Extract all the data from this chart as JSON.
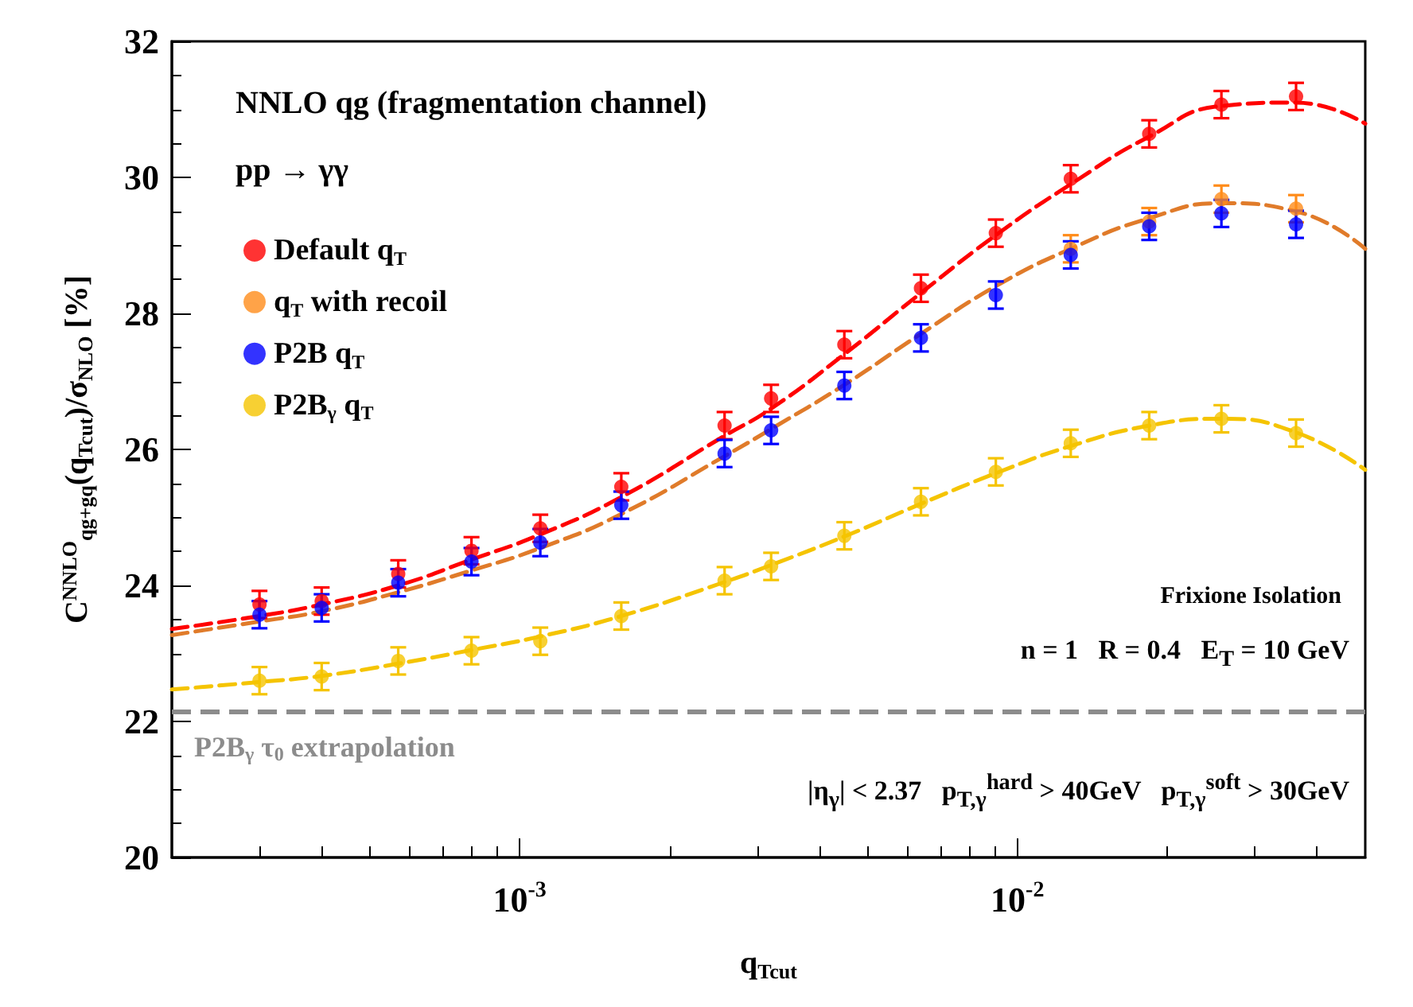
{
  "chart_data": {
    "type": "scatter",
    "xlabel": "q$_{Tcut}$",
    "ylabel": "C$^{NNLO}$$_{qg+gq}$(q$_{Tcut}$)/σ$_{NLO}$ [%]",
    "x": [
      0.0003,
      0.0004,
      0.00057,
      0.0008,
      0.0011,
      0.0016,
      0.00258,
      0.0032,
      0.00449,
      0.0064,
      0.00905,
      0.0128,
      0.0184,
      0.0257,
      0.0363
    ],
    "series": [
      {
        "name": "Default q$_{T}$",
        "color": "#ff0000",
        "values": [
          23.72,
          23.77,
          24.17,
          24.51,
          24.84,
          25.45,
          26.35,
          26.75,
          27.54,
          28.37,
          29.18,
          29.98,
          30.64,
          31.07,
          31.19
        ],
        "errors": [
          0.2,
          0.2,
          0.2,
          0.2,
          0.2,
          0.2,
          0.2,
          0.2,
          0.2,
          0.2,
          0.2,
          0.2,
          0.2,
          0.2,
          0.2
        ]
      },
      {
        "name": "q$_{T}$ with recoil",
        "color": "#ff8c1a",
        "values": [
          null,
          null,
          null,
          null,
          null,
          null,
          null,
          null,
          null,
          null,
          null,
          28.95,
          29.35,
          29.68,
          29.54
        ],
        "errors": [
          null,
          null,
          null,
          null,
          null,
          null,
          null,
          null,
          null,
          null,
          null,
          0.2,
          0.2,
          0.2,
          0.2
        ]
      },
      {
        "name": "P2B q$_{T}$",
        "color": "#0000ff",
        "values": [
          23.57,
          23.67,
          24.04,
          24.35,
          24.63,
          25.18,
          25.94,
          26.28,
          26.94,
          27.64,
          28.27,
          28.86,
          29.28,
          29.47,
          29.31
        ],
        "errors": [
          0.2,
          0.2,
          0.2,
          0.2,
          0.2,
          0.2,
          0.2,
          0.2,
          0.2,
          0.2,
          0.2,
          0.2,
          0.2,
          0.2,
          0.2
        ]
      },
      {
        "name": "P2B$_{γ}$ q$_{T}$",
        "color": "#f5c400",
        "values": [
          22.6,
          22.66,
          22.89,
          23.04,
          23.18,
          23.55,
          24.07,
          24.28,
          24.73,
          25.23,
          25.67,
          26.09,
          26.35,
          26.45,
          26.24
        ],
        "errors": [
          0.2,
          0.2,
          0.2,
          0.2,
          0.2,
          0.2,
          0.2,
          0.2,
          0.2,
          0.2,
          0.2,
          0.2,
          0.2,
          0.2,
          0.2
        ]
      },
      {
        "type": "line",
        "color": "#ff0000",
        "line_style": "dashed",
        "marker": "none",
        "x": [
          0.0002,
          0.0003,
          0.0004,
          0.00057,
          0.0008,
          0.0011,
          0.0016,
          0.00258,
          0.0032,
          0.00449,
          0.0064,
          0.00905,
          0.0128,
          0.0184,
          0.0257,
          0.0363,
          0.05
        ],
        "values": [
          23.36,
          23.55,
          23.72,
          24.0,
          24.38,
          24.75,
          25.3,
          26.2,
          26.6,
          27.4,
          28.3,
          29.15,
          29.9,
          30.6,
          31.05,
          31.1,
          30.79
        ]
      },
      {
        "type": "line",
        "color": "#e07b2a",
        "line_style": "dashed",
        "marker": "none",
        "x": [
          0.0002,
          0.0003,
          0.0004,
          0.00057,
          0.0008,
          0.0011,
          0.0016,
          0.00258,
          0.0032,
          0.00449,
          0.0064,
          0.00905,
          0.0128,
          0.0184,
          0.0257,
          0.0363,
          0.05
        ],
        "values": [
          23.27,
          23.47,
          23.62,
          23.9,
          24.22,
          24.55,
          25.05,
          25.9,
          26.3,
          26.95,
          27.7,
          28.4,
          28.95,
          29.4,
          29.62,
          29.5,
          28.95
        ]
      },
      {
        "type": "line",
        "color": "#f5c400",
        "line_style": "dashed",
        "marker": "none",
        "x": [
          0.0002,
          0.0003,
          0.0004,
          0.00057,
          0.0008,
          0.0011,
          0.0016,
          0.00258,
          0.0032,
          0.00449,
          0.0064,
          0.00905,
          0.0128,
          0.0184,
          0.0257,
          0.0363,
          0.05
        ],
        "values": [
          22.47,
          22.58,
          22.67,
          22.85,
          23.05,
          23.25,
          23.55,
          24.05,
          24.3,
          24.72,
          25.2,
          25.65,
          26.05,
          26.35,
          26.45,
          26.25,
          25.7
        ]
      }
    ],
    "marker": "circle",
    "log": "x",
    "xlim": [
      0.0002,
      0.05
    ],
    "xticks": [
      {
        "value": 0.001,
        "label": "10$^{-3}$"
      },
      {
        "value": 0.01,
        "label": "10$^{-2}$"
      }
    ],
    "ylim": [
      20,
      32
    ],
    "yticks": [
      20,
      22,
      24,
      26,
      28,
      30,
      32
    ],
    "grid": false,
    "legend": "top left",
    "ref_lines": [
      {
        "axis": "y",
        "value": 22.15,
        "label": "P2B$_{γ}$ τ$_{0}$ extrapolation",
        "color": "#8c8c8c",
        "line_style": "dashed"
      }
    ],
    "annotations": [
      "NNLO qg (fragmentation channel)",
      "pp → γγ",
      "Frixione Isolation",
      "n = 1   R = 0.4   E$_{T}$ = 10 GeV",
      "|η$_{γ}$| < 2.37   p$_{T,γ}$$^{hard}$ > 40GeV   p$_{T,γ}$$^{soft}$ > 30GeV"
    ]
  }
}
